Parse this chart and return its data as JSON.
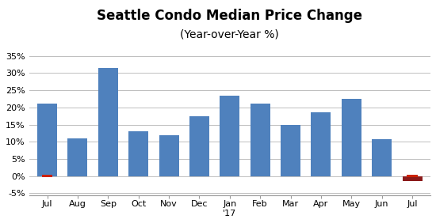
{
  "title_line1": "Seattle Condo Median Price Change",
  "title_line2": "(Year-over-Year %)",
  "categories": [
    "Jul",
    "Aug",
    "Sep",
    "Oct",
    "Nov",
    "Dec",
    "Jan\n'17",
    "Feb",
    "Mar",
    "Apr",
    "May",
    "Jun",
    "Jul"
  ],
  "values": [
    0.21,
    0.11,
    0.315,
    0.13,
    0.12,
    0.175,
    0.235,
    0.21,
    0.148,
    0.185,
    0.225,
    0.108,
    -0.015
  ],
  "bar_colors": [
    "#4f81bd",
    "#4f81bd",
    "#4f81bd",
    "#4f81bd",
    "#4f81bd",
    "#4f81bd",
    "#4f81bd",
    "#4f81bd",
    "#4f81bd",
    "#4f81bd",
    "#4f81bd",
    "#4f81bd",
    "#8b1a1a"
  ],
  "red_marker_color": "#cc2200",
  "ylim": [
    -0.055,
    0.37
  ],
  "yticks": [
    -0.05,
    0.0,
    0.05,
    0.1,
    0.15,
    0.2,
    0.25,
    0.3,
    0.35
  ],
  "ytick_labels": [
    "-5%",
    "0%",
    "5%",
    "10%",
    "15%",
    "20%",
    "25%",
    "30%",
    "35%"
  ],
  "background_color": "#ffffff",
  "grid_color": "#bebebe",
  "title_fontsize": 12,
  "subtitle_fontsize": 10,
  "tick_fontsize": 8
}
